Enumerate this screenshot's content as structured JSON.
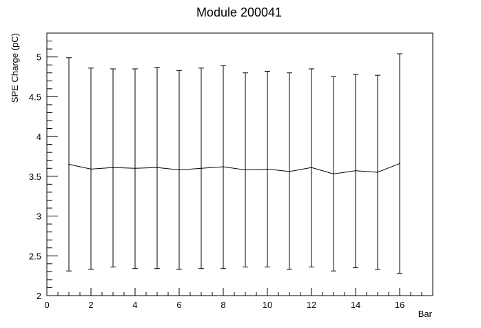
{
  "chart_data": {
    "type": "line",
    "title": "Module 200041",
    "xlabel": "Bar",
    "ylabel": "SPE Charge (pC)",
    "xlim": [
      0,
      17.5
    ],
    "ylim": [
      2,
      5.3
    ],
    "grid": false,
    "x_ticks": [
      "0",
      "2",
      "4",
      "6",
      "8",
      "10",
      "12",
      "14",
      "16"
    ],
    "y_ticks": [
      "2",
      "2.5",
      "3",
      "3.5",
      "4",
      "4.5",
      "5"
    ],
    "series": [
      {
        "x": [
          1,
          2,
          3,
          4,
          5,
          6,
          7,
          8,
          9,
          10,
          11,
          12,
          13,
          14,
          15,
          16
        ],
        "y": [
          3.65,
          3.59,
          3.61,
          3.6,
          3.61,
          3.58,
          3.6,
          3.62,
          3.58,
          3.59,
          3.56,
          3.61,
          3.53,
          3.57,
          3.55,
          3.66
        ],
        "ylow": [
          2.31,
          2.33,
          2.36,
          2.34,
          2.34,
          2.33,
          2.34,
          2.34,
          2.36,
          2.36,
          2.33,
          2.36,
          2.31,
          2.35,
          2.33,
          2.28
        ],
        "yhigh": [
          4.99,
          4.86,
          4.85,
          4.85,
          4.87,
          4.83,
          4.86,
          4.89,
          4.8,
          4.82,
          4.8,
          4.85,
          4.75,
          4.78,
          4.77,
          5.04
        ]
      }
    ],
    "colors": {
      "line": "#000000",
      "frame": "#000000"
    }
  }
}
